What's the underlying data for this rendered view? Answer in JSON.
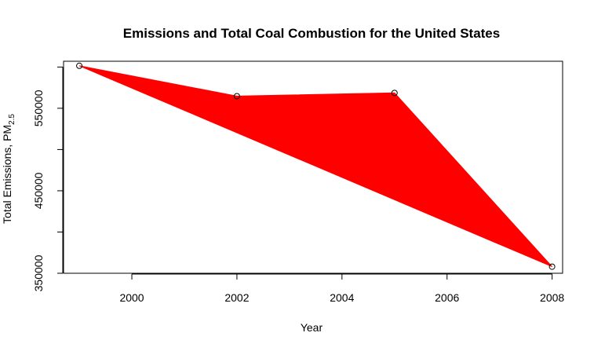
{
  "chart_data": {
    "type": "area",
    "title": "Emissions and Total Coal Combustion for the United States",
    "xlabel": "Year",
    "ylabel_main": "Total Emissions, PM",
    "ylabel_sub": "2.5",
    "x": [
      1999,
      2002,
      2005,
      2008
    ],
    "series": [
      {
        "values": [
          601500,
          564700,
          568600,
          358000
        ]
      }
    ],
    "fill_color": "#ff0000",
    "xticks": [
      2000,
      2002,
      2004,
      2006,
      2008
    ],
    "xtick_labels": [
      "2000",
      "2002",
      "2004",
      "2006",
      "2008"
    ],
    "yticks": [
      350000,
      400000,
      450000,
      500000,
      550000,
      600000
    ],
    "ytick_labels": [
      "350000",
      "",
      "450000",
      "",
      "550000",
      ""
    ],
    "xlim": [
      1998.7,
      2008.2
    ],
    "ylim": [
      350000,
      607000
    ],
    "grid": false,
    "legend": "none"
  }
}
